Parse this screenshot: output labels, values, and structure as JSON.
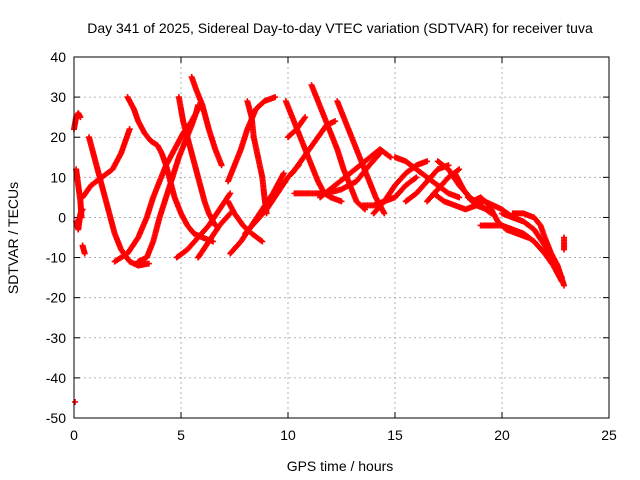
{
  "chart_data": {
    "type": "scatter",
    "title": "Day 341 of 2025, Sidereal Day-to-day VTEC variation (SDTVAR) for receiver tuva",
    "xlabel": "GPS time / hours",
    "ylabel": "SDTVAR / TECUs",
    "xlim": [
      0,
      25
    ],
    "ylim": [
      -50,
      40
    ],
    "xticks": [
      0,
      5,
      10,
      15,
      20,
      25
    ],
    "yticks": [
      -50,
      -40,
      -30,
      -20,
      -10,
      0,
      10,
      20,
      30,
      40
    ],
    "grid": true,
    "marker": "+",
    "color": "#ff0000",
    "series": [
      {
        "name": "s1",
        "points": [
          [
            0.0,
            22
          ],
          [
            0.1,
            25
          ],
          [
            0.2,
            26
          ],
          [
            0.3,
            25
          ]
        ]
      },
      {
        "name": "s2",
        "points": [
          [
            0.1,
            12
          ],
          [
            0.2,
            8
          ],
          [
            0.3,
            4
          ],
          [
            0.35,
            0
          ]
        ]
      },
      {
        "name": "s3",
        "points": [
          [
            0.1,
            -1
          ],
          [
            0.2,
            -3
          ],
          [
            0.3,
            1
          ],
          [
            0.4,
            2
          ]
        ]
      },
      {
        "name": "s4",
        "points": [
          [
            0.4,
            -7
          ],
          [
            0.5,
            -9
          ]
        ]
      },
      {
        "name": "s5",
        "points": [
          [
            0.7,
            20
          ],
          [
            0.9,
            16
          ],
          [
            1.1,
            12
          ],
          [
            1.3,
            8
          ],
          [
            1.5,
            4
          ],
          [
            1.7,
            0
          ],
          [
            1.9,
            -4
          ],
          [
            2.2,
            -8
          ],
          [
            2.6,
            -11
          ],
          [
            3.0,
            -12
          ],
          [
            3.5,
            -11.5
          ]
        ]
      },
      {
        "name": "s6",
        "points": [
          [
            0.4,
            5
          ],
          [
            0.8,
            8
          ],
          [
            1.3,
            10
          ],
          [
            1.8,
            12
          ],
          [
            2.2,
            16
          ],
          [
            2.6,
            22
          ],
          [
            2.6,
            22
          ]
        ]
      },
      {
        "name": "s7",
        "points": [
          [
            1.9,
            -11
          ],
          [
            2.5,
            -9
          ],
          [
            3.0,
            -5
          ],
          [
            3.4,
            0
          ],
          [
            3.7,
            5
          ],
          [
            4.0,
            9
          ],
          [
            4.3,
            13
          ],
          [
            4.7,
            17
          ],
          [
            5.1,
            21
          ],
          [
            5.5,
            24
          ],
          [
            5.8,
            27
          ],
          [
            6.0,
            28
          ]
        ]
      },
      {
        "name": "s8",
        "points": [
          [
            2.5,
            30
          ],
          [
            2.8,
            27
          ],
          [
            3.0,
            24
          ],
          [
            3.3,
            21
          ],
          [
            3.6,
            19
          ],
          [
            3.9,
            18
          ],
          [
            4.1,
            16
          ],
          [
            4.3,
            13
          ],
          [
            4.5,
            9
          ],
          [
            4.7,
            5
          ],
          [
            5.0,
            1
          ],
          [
            5.3,
            -2
          ],
          [
            5.6,
            -4
          ],
          [
            6.0,
            -5
          ],
          [
            6.5,
            -6
          ]
        ]
      },
      {
        "name": "s9",
        "points": [
          [
            3.0,
            -11
          ],
          [
            3.4,
            -10
          ],
          [
            3.7,
            -6
          ],
          [
            4.0,
            0
          ],
          [
            4.3,
            5
          ],
          [
            4.6,
            10
          ],
          [
            4.9,
            15
          ],
          [
            5.2,
            19
          ],
          [
            5.5,
            23
          ],
          [
            5.7,
            26
          ],
          [
            5.8,
            28
          ]
        ]
      },
      {
        "name": "s10",
        "points": [
          [
            4.9,
            30
          ],
          [
            5.0,
            27
          ],
          [
            5.1,
            24
          ],
          [
            5.3,
            20
          ],
          [
            5.5,
            16
          ],
          [
            5.7,
            12
          ],
          [
            5.9,
            8
          ],
          [
            6.1,
            4
          ],
          [
            6.3,
            1
          ],
          [
            6.6,
            -2
          ]
        ]
      },
      {
        "name": "s11",
        "points": [
          [
            5.5,
            35
          ],
          [
            5.7,
            32
          ],
          [
            6.0,
            28
          ],
          [
            6.3,
            22
          ],
          [
            6.6,
            17
          ],
          [
            6.9,
            13
          ]
        ]
      },
      {
        "name": "s12",
        "points": [
          [
            4.8,
            -10
          ],
          [
            5.3,
            -8
          ],
          [
            5.8,
            -5
          ],
          [
            6.3,
            -2
          ],
          [
            6.8,
            2
          ],
          [
            7.3,
            6
          ]
        ]
      },
      {
        "name": "s13",
        "points": [
          [
            5.8,
            -10
          ],
          [
            6.3,
            -6
          ],
          [
            6.8,
            -2
          ],
          [
            7.3,
            1
          ]
        ]
      },
      {
        "name": "s14",
        "points": [
          [
            7.3,
            -9
          ],
          [
            7.8,
            -6
          ],
          [
            8.3,
            -2
          ],
          [
            8.8,
            2
          ],
          [
            9.3,
            6
          ],
          [
            9.8,
            11
          ]
        ]
      },
      {
        "name": "s15",
        "points": [
          [
            7.2,
            9
          ],
          [
            7.5,
            13
          ],
          [
            7.8,
            17
          ],
          [
            8.1,
            22
          ],
          [
            8.5,
            27
          ],
          [
            8.9,
            29
          ],
          [
            9.4,
            30
          ]
        ]
      },
      {
        "name": "s16",
        "points": [
          [
            7.2,
            4
          ],
          [
            7.5,
            1
          ],
          [
            7.9,
            -2
          ],
          [
            8.3,
            -4
          ],
          [
            8.8,
            -6
          ]
        ]
      },
      {
        "name": "s17",
        "points": [
          [
            8.1,
            29
          ],
          [
            8.3,
            25
          ],
          [
            8.4,
            20
          ],
          [
            8.6,
            15
          ],
          [
            8.8,
            10
          ],
          [
            8.9,
            5
          ],
          [
            9.0,
            1
          ]
        ]
      },
      {
        "name": "s18",
        "points": [
          [
            8.0,
            -4
          ],
          [
            8.5,
            -1
          ],
          [
            9.0,
            2
          ],
          [
            9.5,
            6
          ],
          [
            10.0,
            10
          ],
          [
            10.5,
            13
          ]
        ]
      },
      {
        "name": "s19",
        "points": [
          [
            9.9,
            29
          ],
          [
            10.2,
            25
          ],
          [
            10.5,
            21
          ],
          [
            10.8,
            17
          ],
          [
            11.1,
            13
          ],
          [
            11.4,
            9
          ],
          [
            11.7,
            6
          ],
          [
            12.0,
            5
          ],
          [
            12.5,
            4
          ]
        ]
      },
      {
        "name": "s20",
        "points": [
          [
            10.0,
            20
          ],
          [
            10.4,
            22
          ],
          [
            10.8,
            25
          ]
        ]
      },
      {
        "name": "s21",
        "points": [
          [
            10.2,
            11
          ],
          [
            10.6,
            14
          ],
          [
            11.0,
            17
          ],
          [
            11.4,
            20
          ],
          [
            11.8,
            23
          ],
          [
            12.2,
            24
          ]
        ]
      },
      {
        "name": "s22",
        "points": [
          [
            11.1,
            33
          ],
          [
            11.4,
            29
          ],
          [
            11.7,
            25
          ],
          [
            12.0,
            21
          ],
          [
            12.3,
            17
          ],
          [
            12.6,
            12
          ],
          [
            12.9,
            8
          ],
          [
            13.2,
            4
          ],
          [
            13.6,
            2
          ]
        ]
      },
      {
        "name": "s23",
        "points": [
          [
            10.3,
            6
          ],
          [
            11.0,
            6
          ],
          [
            11.8,
            6
          ],
          [
            12.5,
            7
          ],
          [
            13.2,
            9
          ],
          [
            13.8,
            13
          ],
          [
            14.3,
            16
          ]
        ]
      },
      {
        "name": "s24",
        "points": [
          [
            12.3,
            29
          ],
          [
            12.6,
            25
          ],
          [
            12.9,
            21
          ],
          [
            13.2,
            17
          ],
          [
            13.5,
            13
          ],
          [
            13.8,
            9
          ],
          [
            14.1,
            5
          ],
          [
            14.5,
            1
          ]
        ]
      },
      {
        "name": "s25",
        "points": [
          [
            11.5,
            5
          ],
          [
            12.2,
            8
          ],
          [
            12.9,
            11
          ],
          [
            13.6,
            14
          ],
          [
            14.3,
            17
          ],
          [
            14.8,
            15
          ]
        ]
      },
      {
        "name": "s26",
        "points": [
          [
            13.5,
            3
          ],
          [
            14.0,
            3
          ],
          [
            14.5,
            4
          ],
          [
            15.0,
            5
          ],
          [
            15.5,
            8
          ],
          [
            16.0,
            10
          ]
        ]
      },
      {
        "name": "s27",
        "points": [
          [
            14.0,
            1
          ],
          [
            14.5,
            4
          ],
          [
            15.0,
            8
          ],
          [
            15.5,
            11
          ],
          [
            16.0,
            13
          ],
          [
            16.5,
            14
          ]
        ]
      },
      {
        "name": "s28",
        "points": [
          [
            15.0,
            15
          ],
          [
            15.5,
            14
          ],
          [
            16.0,
            12
          ],
          [
            16.5,
            10
          ],
          [
            17.0,
            8
          ],
          [
            17.5,
            6
          ],
          [
            18.0,
            5
          ]
        ]
      },
      {
        "name": "s29",
        "points": [
          [
            15.5,
            4
          ],
          [
            16.0,
            6
          ],
          [
            16.5,
            9
          ],
          [
            17.0,
            12
          ],
          [
            17.5,
            13
          ]
        ]
      },
      {
        "name": "s30",
        "points": [
          [
            16.5,
            4
          ],
          [
            17.0,
            7
          ],
          [
            17.5,
            10
          ],
          [
            18.0,
            12
          ]
        ]
      },
      {
        "name": "s31",
        "points": [
          [
            17.0,
            14
          ],
          [
            17.5,
            12
          ],
          [
            18.0,
            8
          ],
          [
            18.5,
            5
          ],
          [
            19.0,
            3
          ],
          [
            19.5,
            1
          ]
        ]
      },
      {
        "name": "s32",
        "points": [
          [
            16.8,
            6
          ],
          [
            17.3,
            4
          ],
          [
            17.8,
            3
          ],
          [
            18.3,
            2
          ],
          [
            18.8,
            3
          ],
          [
            19.3,
            2
          ]
        ]
      },
      {
        "name": "s33",
        "points": [
          [
            17.8,
            11
          ],
          [
            18.2,
            7
          ],
          [
            18.6,
            4
          ],
          [
            19.0,
            5
          ],
          [
            19.4,
            3
          ],
          [
            19.8,
            -1
          ],
          [
            20.2,
            -3
          ],
          [
            20.7,
            -4
          ],
          [
            21.2,
            -5
          ]
        ]
      },
      {
        "name": "s34",
        "points": [
          [
            18.4,
            5
          ],
          [
            18.8,
            4
          ],
          [
            19.2,
            4
          ],
          [
            19.6,
            3
          ],
          [
            20.0,
            2
          ],
          [
            20.5,
            0
          ],
          [
            21.0,
            -1
          ]
        ]
      },
      {
        "name": "s35",
        "points": [
          [
            19.0,
            -2
          ],
          [
            19.5,
            -2
          ],
          [
            20.0,
            -2
          ],
          [
            20.5,
            -3
          ],
          [
            21.0,
            -4
          ],
          [
            21.5,
            -6
          ],
          [
            22.0,
            -9
          ],
          [
            22.4,
            -12
          ],
          [
            22.8,
            -16
          ]
        ]
      },
      {
        "name": "s36",
        "points": [
          [
            20.0,
            1
          ],
          [
            20.5,
            0
          ],
          [
            21.0,
            -1
          ],
          [
            21.5,
            -3
          ],
          [
            22.0,
            -7
          ],
          [
            22.4,
            -11
          ],
          [
            22.8,
            -15
          ]
        ]
      },
      {
        "name": "s37",
        "points": [
          [
            20.5,
            1
          ],
          [
            21.0,
            1
          ],
          [
            21.5,
            0
          ],
          [
            21.8,
            -2
          ],
          [
            22.0,
            -5
          ],
          [
            22.3,
            -9
          ],
          [
            22.6,
            -12
          ],
          [
            22.9,
            -17
          ]
        ]
      },
      {
        "name": "s38",
        "points": [
          [
            22.9,
            -5
          ],
          [
            22.9,
            -8
          ]
        ]
      },
      {
        "name": "s39",
        "points": [
          [
            0.05,
            -46
          ]
        ]
      }
    ]
  }
}
